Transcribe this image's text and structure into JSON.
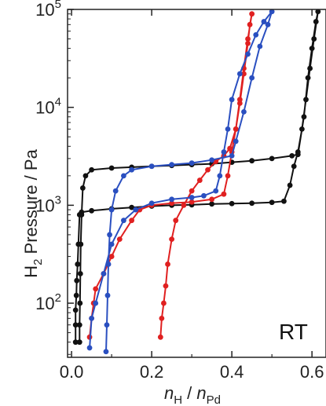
{
  "chart_data": {
    "type": "line",
    "ylabel": {
      "base": "H",
      "sub": "2",
      "rest": " Pressure / Pa"
    },
    "xlabel": {
      "n1": "n",
      "sub1": "H",
      "mid": " / ",
      "n2": "n",
      "sub2": "Pd"
    },
    "annotation": "RT",
    "xlim": [
      -0.01,
      0.635
    ],
    "ylim": [
      28,
      100000
    ],
    "yscale": "log",
    "xticks": [
      0.0,
      0.2,
      0.4,
      0.6
    ],
    "xtick_labels": [
      "0.0",
      "0.2",
      "0.4",
      "0.6"
    ],
    "yticks": [
      100,
      1000,
      10000,
      100000
    ],
    "ytick_labels": [
      {
        "base": "10",
        "exp": "2"
      },
      {
        "base": "10",
        "exp": "3"
      },
      {
        "base": "10",
        "exp": "4"
      },
      {
        "base": "10",
        "exp": "5"
      }
    ],
    "series": [
      {
        "color": "#111111",
        "points": [
          [
            0.01,
            40
          ],
          [
            0.01,
            60
          ],
          [
            0.01,
            85
          ],
          [
            0.012,
            120
          ],
          [
            0.013,
            170
          ],
          [
            0.015,
            250
          ],
          [
            0.017,
            400
          ],
          [
            0.02,
            800
          ],
          [
            0.025,
            850
          ],
          [
            0.05,
            880
          ],
          [
            0.1,
            920
          ],
          [
            0.15,
            950
          ],
          [
            0.2,
            980
          ],
          [
            0.25,
            1000
          ],
          [
            0.3,
            1010
          ],
          [
            0.35,
            1030
          ],
          [
            0.4,
            1040
          ],
          [
            0.45,
            1050
          ],
          [
            0.5,
            1070
          ],
          [
            0.53,
            1100
          ],
          [
            0.545,
            1600
          ],
          [
            0.555,
            2500
          ],
          [
            0.565,
            3500
          ],
          [
            0.575,
            6000
          ],
          [
            0.585,
            12000
          ],
          [
            0.595,
            25000
          ],
          [
            0.605,
            50000
          ],
          [
            0.615,
            95000
          ],
          [
            0.61,
            75000
          ],
          [
            0.6,
            40000
          ],
          [
            0.59,
            20000
          ],
          [
            0.58,
            8000
          ],
          [
            0.565,
            3300
          ],
          [
            0.55,
            3200
          ],
          [
            0.5,
            3000
          ],
          [
            0.45,
            2850
          ],
          [
            0.4,
            2750
          ],
          [
            0.35,
            2650
          ],
          [
            0.3,
            2600
          ],
          [
            0.25,
            2550
          ],
          [
            0.2,
            2500
          ],
          [
            0.15,
            2450
          ],
          [
            0.1,
            2400
          ],
          [
            0.05,
            2300
          ],
          [
            0.035,
            2000
          ],
          [
            0.028,
            1500
          ],
          [
            0.025,
            800
          ],
          [
            0.023,
            400
          ],
          [
            0.022,
            200
          ],
          [
            0.021,
            100
          ],
          [
            0.02,
            60
          ],
          [
            0.02,
            40
          ]
        ]
      },
      {
        "color": "#e02020",
        "points": [
          [
            0.045,
            45
          ],
          [
            0.05,
            70
          ],
          [
            0.055,
            100
          ],
          [
            0.06,
            140
          ],
          [
            0.08,
            200
          ],
          [
            0.1,
            300
          ],
          [
            0.12,
            450
          ],
          [
            0.15,
            700
          ],
          [
            0.17,
            900
          ],
          [
            0.2,
            1000
          ],
          [
            0.25,
            1050
          ],
          [
            0.3,
            1080
          ],
          [
            0.35,
            1150
          ],
          [
            0.38,
            1300
          ],
          [
            0.39,
            2000
          ],
          [
            0.4,
            3500
          ],
          [
            0.41,
            6000
          ],
          [
            0.42,
            12000
          ],
          [
            0.43,
            25000
          ],
          [
            0.44,
            50000
          ],
          [
            0.45,
            90000
          ],
          [
            0.445,
            70000
          ],
          [
            0.44,
            45000
          ],
          [
            0.43,
            22000
          ],
          [
            0.42,
            11000
          ],
          [
            0.41,
            6000
          ],
          [
            0.395,
            3800
          ],
          [
            0.38,
            3200
          ],
          [
            0.36,
            2800
          ],
          [
            0.34,
            2300
          ],
          [
            0.32,
            1800
          ],
          [
            0.3,
            1400
          ],
          [
            0.28,
            1000
          ],
          [
            0.26,
            700
          ],
          [
            0.25,
            450
          ],
          [
            0.24,
            250
          ],
          [
            0.235,
            150
          ],
          [
            0.23,
            100
          ],
          [
            0.225,
            70
          ],
          [
            0.222,
            45
          ]
        ]
      },
      {
        "color": "#2a4fc0",
        "points": [
          [
            0.045,
            35
          ],
          [
            0.05,
            70
          ],
          [
            0.06,
            100
          ],
          [
            0.08,
            200
          ],
          [
            0.1,
            400
          ],
          [
            0.13,
            700
          ],
          [
            0.16,
            900
          ],
          [
            0.2,
            1050
          ],
          [
            0.25,
            1150
          ],
          [
            0.3,
            1200
          ],
          [
            0.33,
            1250
          ],
          [
            0.36,
            1400
          ],
          [
            0.37,
            2000
          ],
          [
            0.38,
            3500
          ],
          [
            0.39,
            6000
          ],
          [
            0.4,
            12000
          ],
          [
            0.42,
            22000
          ],
          [
            0.44,
            35000
          ],
          [
            0.46,
            55000
          ],
          [
            0.48,
            75000
          ],
          [
            0.5,
            95000
          ],
          [
            0.49,
            70000
          ],
          [
            0.47,
            42000
          ],
          [
            0.45,
            20000
          ],
          [
            0.43,
            9000
          ],
          [
            0.41,
            4500
          ],
          [
            0.4,
            3200
          ],
          [
            0.35,
            2900
          ],
          [
            0.3,
            2700
          ],
          [
            0.25,
            2600
          ],
          [
            0.2,
            2500
          ],
          [
            0.15,
            2300
          ],
          [
            0.13,
            2000
          ],
          [
            0.11,
            1400
          ],
          [
            0.1,
            900
          ],
          [
            0.095,
            500
          ],
          [
            0.092,
            250
          ],
          [
            0.09,
            120
          ],
          [
            0.088,
            60
          ],
          [
            0.086,
            32
          ]
        ]
      }
    ]
  }
}
